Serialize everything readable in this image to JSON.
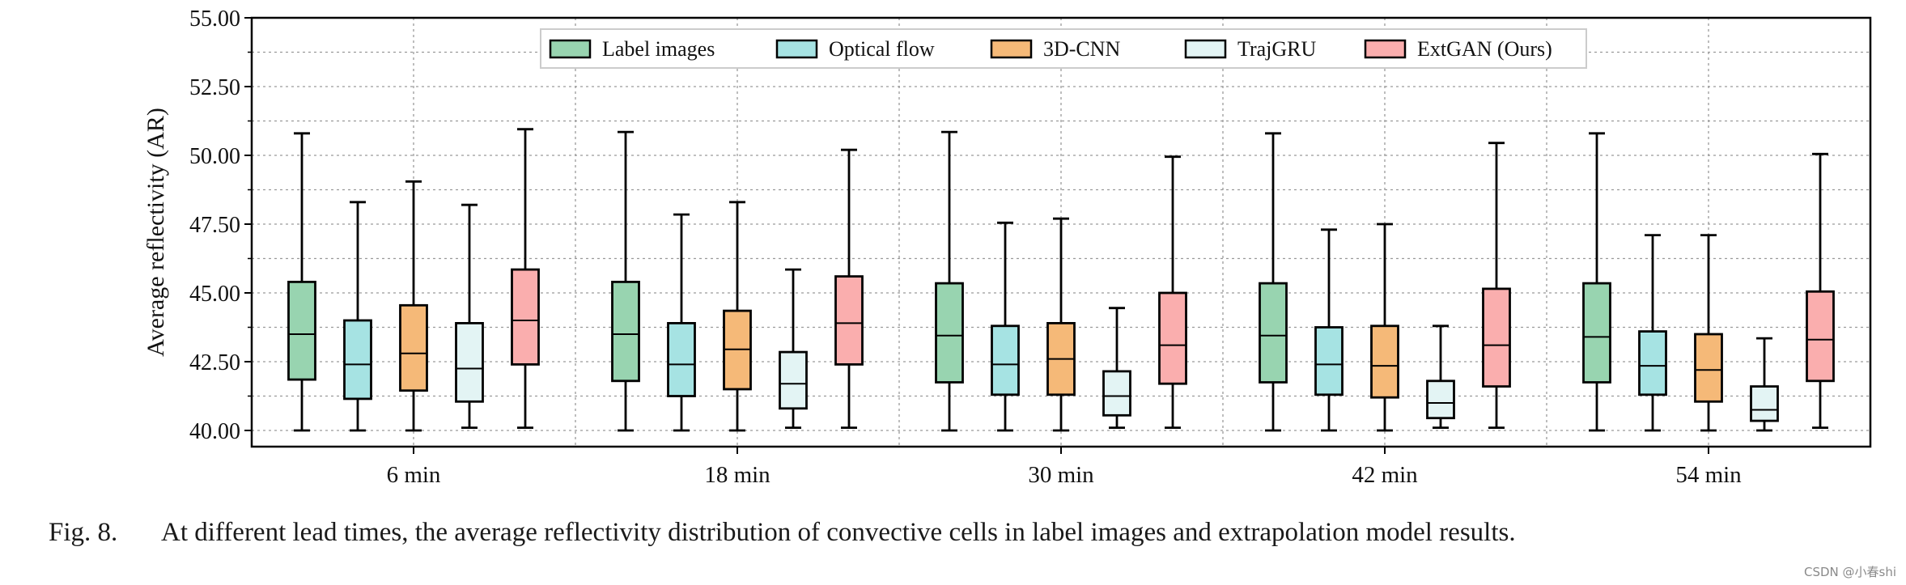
{
  "chart_data": {
    "type": "boxplot",
    "title": "",
    "xlabel": "",
    "ylabel": "Average reflectivity (AR)",
    "ylim": [
      39.5,
      55.0
    ],
    "yticks": [
      40.0,
      42.5,
      45.0,
      47.5,
      50.0,
      52.5,
      55.0
    ],
    "ytick_labels": [
      "40.00",
      "42.50",
      "45.00",
      "47.50",
      "50.00",
      "52.50",
      "55.00"
    ],
    "grid": true,
    "legend_position": "top-center",
    "categories": [
      "6 min",
      "18 min",
      "30 min",
      "42 min",
      "54 min"
    ],
    "series": [
      {
        "name": "Label images",
        "color": "#98d4b0",
        "boxes": [
          {
            "whislo": 40.0,
            "q1": 41.85,
            "med": 43.5,
            "q3": 45.4,
            "whishi": 50.8
          },
          {
            "whislo": 40.0,
            "q1": 41.8,
            "med": 43.5,
            "q3": 45.4,
            "whishi": 50.85
          },
          {
            "whislo": 40.0,
            "q1": 41.75,
            "med": 43.45,
            "q3": 45.35,
            "whishi": 50.85
          },
          {
            "whislo": 40.0,
            "q1": 41.75,
            "med": 43.45,
            "q3": 45.35,
            "whishi": 50.8
          },
          {
            "whislo": 40.0,
            "q1": 41.75,
            "med": 43.4,
            "q3": 45.35,
            "whishi": 50.8
          }
        ]
      },
      {
        "name": "Optical flow",
        "color": "#a6e3e3",
        "boxes": [
          {
            "whislo": 40.0,
            "q1": 41.15,
            "med": 42.4,
            "q3": 44.0,
            "whishi": 48.3
          },
          {
            "whislo": 40.0,
            "q1": 41.25,
            "med": 42.4,
            "q3": 43.9,
            "whishi": 47.85
          },
          {
            "whislo": 40.0,
            "q1": 41.3,
            "med": 42.4,
            "q3": 43.8,
            "whishi": 47.55
          },
          {
            "whislo": 40.0,
            "q1": 41.3,
            "med": 42.4,
            "q3": 43.75,
            "whishi": 47.3
          },
          {
            "whislo": 40.0,
            "q1": 41.3,
            "med": 42.35,
            "q3": 43.6,
            "whishi": 47.1
          }
        ]
      },
      {
        "name": "3D-CNN",
        "color": "#f5b978",
        "boxes": [
          {
            "whislo": 40.0,
            "q1": 41.45,
            "med": 42.8,
            "q3": 44.55,
            "whishi": 49.05
          },
          {
            "whislo": 40.0,
            "q1": 41.5,
            "med": 42.95,
            "q3": 44.35,
            "whishi": 48.3
          },
          {
            "whislo": 40.0,
            "q1": 41.3,
            "med": 42.6,
            "q3": 43.9,
            "whishi": 47.7
          },
          {
            "whislo": 40.0,
            "q1": 41.2,
            "med": 42.35,
            "q3": 43.8,
            "whishi": 47.5
          },
          {
            "whislo": 40.0,
            "q1": 41.05,
            "med": 42.2,
            "q3": 43.5,
            "whishi": 47.1
          }
        ]
      },
      {
        "name": "TrajGRU",
        "color": "#e3f4f4",
        "boxes": [
          {
            "whislo": 40.1,
            "q1": 41.05,
            "med": 42.25,
            "q3": 43.9,
            "whishi": 48.2
          },
          {
            "whislo": 40.1,
            "q1": 40.8,
            "med": 41.7,
            "q3": 42.85,
            "whishi": 45.85
          },
          {
            "whislo": 40.1,
            "q1": 40.55,
            "med": 41.25,
            "q3": 42.15,
            "whishi": 44.45
          },
          {
            "whislo": 40.1,
            "q1": 40.45,
            "med": 41.0,
            "q3": 41.8,
            "whishi": 43.8
          },
          {
            "whislo": 40.0,
            "q1": 40.35,
            "med": 40.75,
            "q3": 41.6,
            "whishi": 43.35
          }
        ]
      },
      {
        "name": "ExtGAN (Ours)",
        "color": "#faaeae",
        "boxes": [
          {
            "whislo": 40.1,
            "q1": 42.4,
            "med": 44.0,
            "q3": 45.85,
            "whishi": 50.95
          },
          {
            "whislo": 40.1,
            "q1": 42.4,
            "med": 43.9,
            "q3": 45.6,
            "whishi": 50.2
          },
          {
            "whislo": 40.1,
            "q1": 41.7,
            "med": 43.1,
            "q3": 45.0,
            "whishi": 49.95
          },
          {
            "whislo": 40.1,
            "q1": 41.6,
            "med": 43.1,
            "q3": 45.15,
            "whishi": 50.45
          },
          {
            "whislo": 40.1,
            "q1": 41.8,
            "med": 43.3,
            "q3": 45.05,
            "whishi": 50.05
          }
        ]
      }
    ]
  },
  "caption": {
    "label": "Fig. 8.",
    "text": "At different lead times, the average reflectivity distribution of convective cells in label images and extrapolation model results."
  },
  "watermark": "CSDN @小春shi"
}
